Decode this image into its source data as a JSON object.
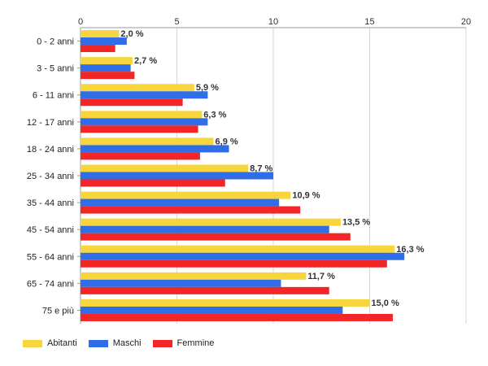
{
  "chart_data": {
    "type": "bar",
    "orientation": "horizontal",
    "categories": [
      "0 - 2 anni",
      "3 - 5 anni",
      "6 - 11 anni",
      "12 - 17 anni",
      "18 - 24 anni",
      "25 - 34 anni",
      "35 - 44 anni",
      "45 - 54 anni",
      "55 - 64 anni",
      "65 - 74 anni",
      "75 e più"
    ],
    "series": [
      {
        "name": "Abitanti",
        "color": "#f6d63c",
        "values": [
          2.0,
          2.7,
          5.9,
          6.3,
          6.9,
          8.7,
          10.9,
          13.5,
          16.3,
          11.7,
          15.0
        ]
      },
      {
        "name": "Maschi",
        "color": "#2f6ee6",
        "values": [
          2.4,
          2.6,
          6.6,
          6.6,
          7.7,
          10.0,
          10.3,
          12.9,
          16.8,
          10.4,
          13.6
        ]
      },
      {
        "name": "Femmine",
        "color": "#f22626",
        "values": [
          1.8,
          2.8,
          5.3,
          6.1,
          6.2,
          7.5,
          11.4,
          14.0,
          15.9,
          12.9,
          16.2
        ]
      }
    ],
    "data_labels": [
      "2,0 %",
      "2,7 %",
      "5,9 %",
      "6,3 %",
      "6,9 %",
      "8,7 %",
      "10,9 %",
      "13,5 %",
      "16,3 %",
      "11,7 %",
      "15,0 %"
    ],
    "x_ticks": [
      "0",
      "5",
      "10",
      "15",
      "20"
    ],
    "xlim": [
      0,
      20
    ],
    "grid": true,
    "legend_position": "bottom-left"
  }
}
